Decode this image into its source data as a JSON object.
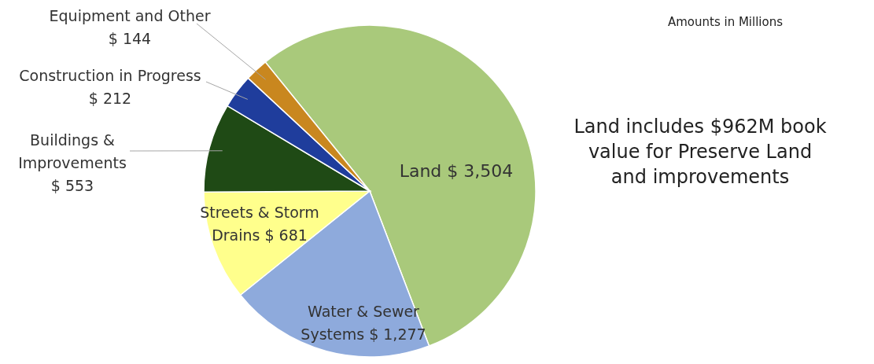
{
  "chart_data": {
    "type": "pie",
    "categories": [
      "Land",
      "Water & Sewer Systems",
      "Streets & Storm Drains",
      "Buildings & Improvements",
      "Construction in Progress",
      "Equipment and Other"
    ],
    "values": [
      3504,
      1277,
      681,
      553,
      212,
      144
    ],
    "value_labels": [
      "$ 3,504",
      "$ 1,277",
      "$ 681",
      "$ 553",
      "$ 212",
      "$ 144"
    ],
    "colors": [
      "#a9c97b",
      "#8eaadc",
      "#ffff8c",
      "#1f4a15",
      "#1f3d9c",
      "#c9871f"
    ],
    "annotations": [
      "Amounts in Millions",
      "Land includes $962M book value for Preserve Land and improvements"
    ]
  }
}
